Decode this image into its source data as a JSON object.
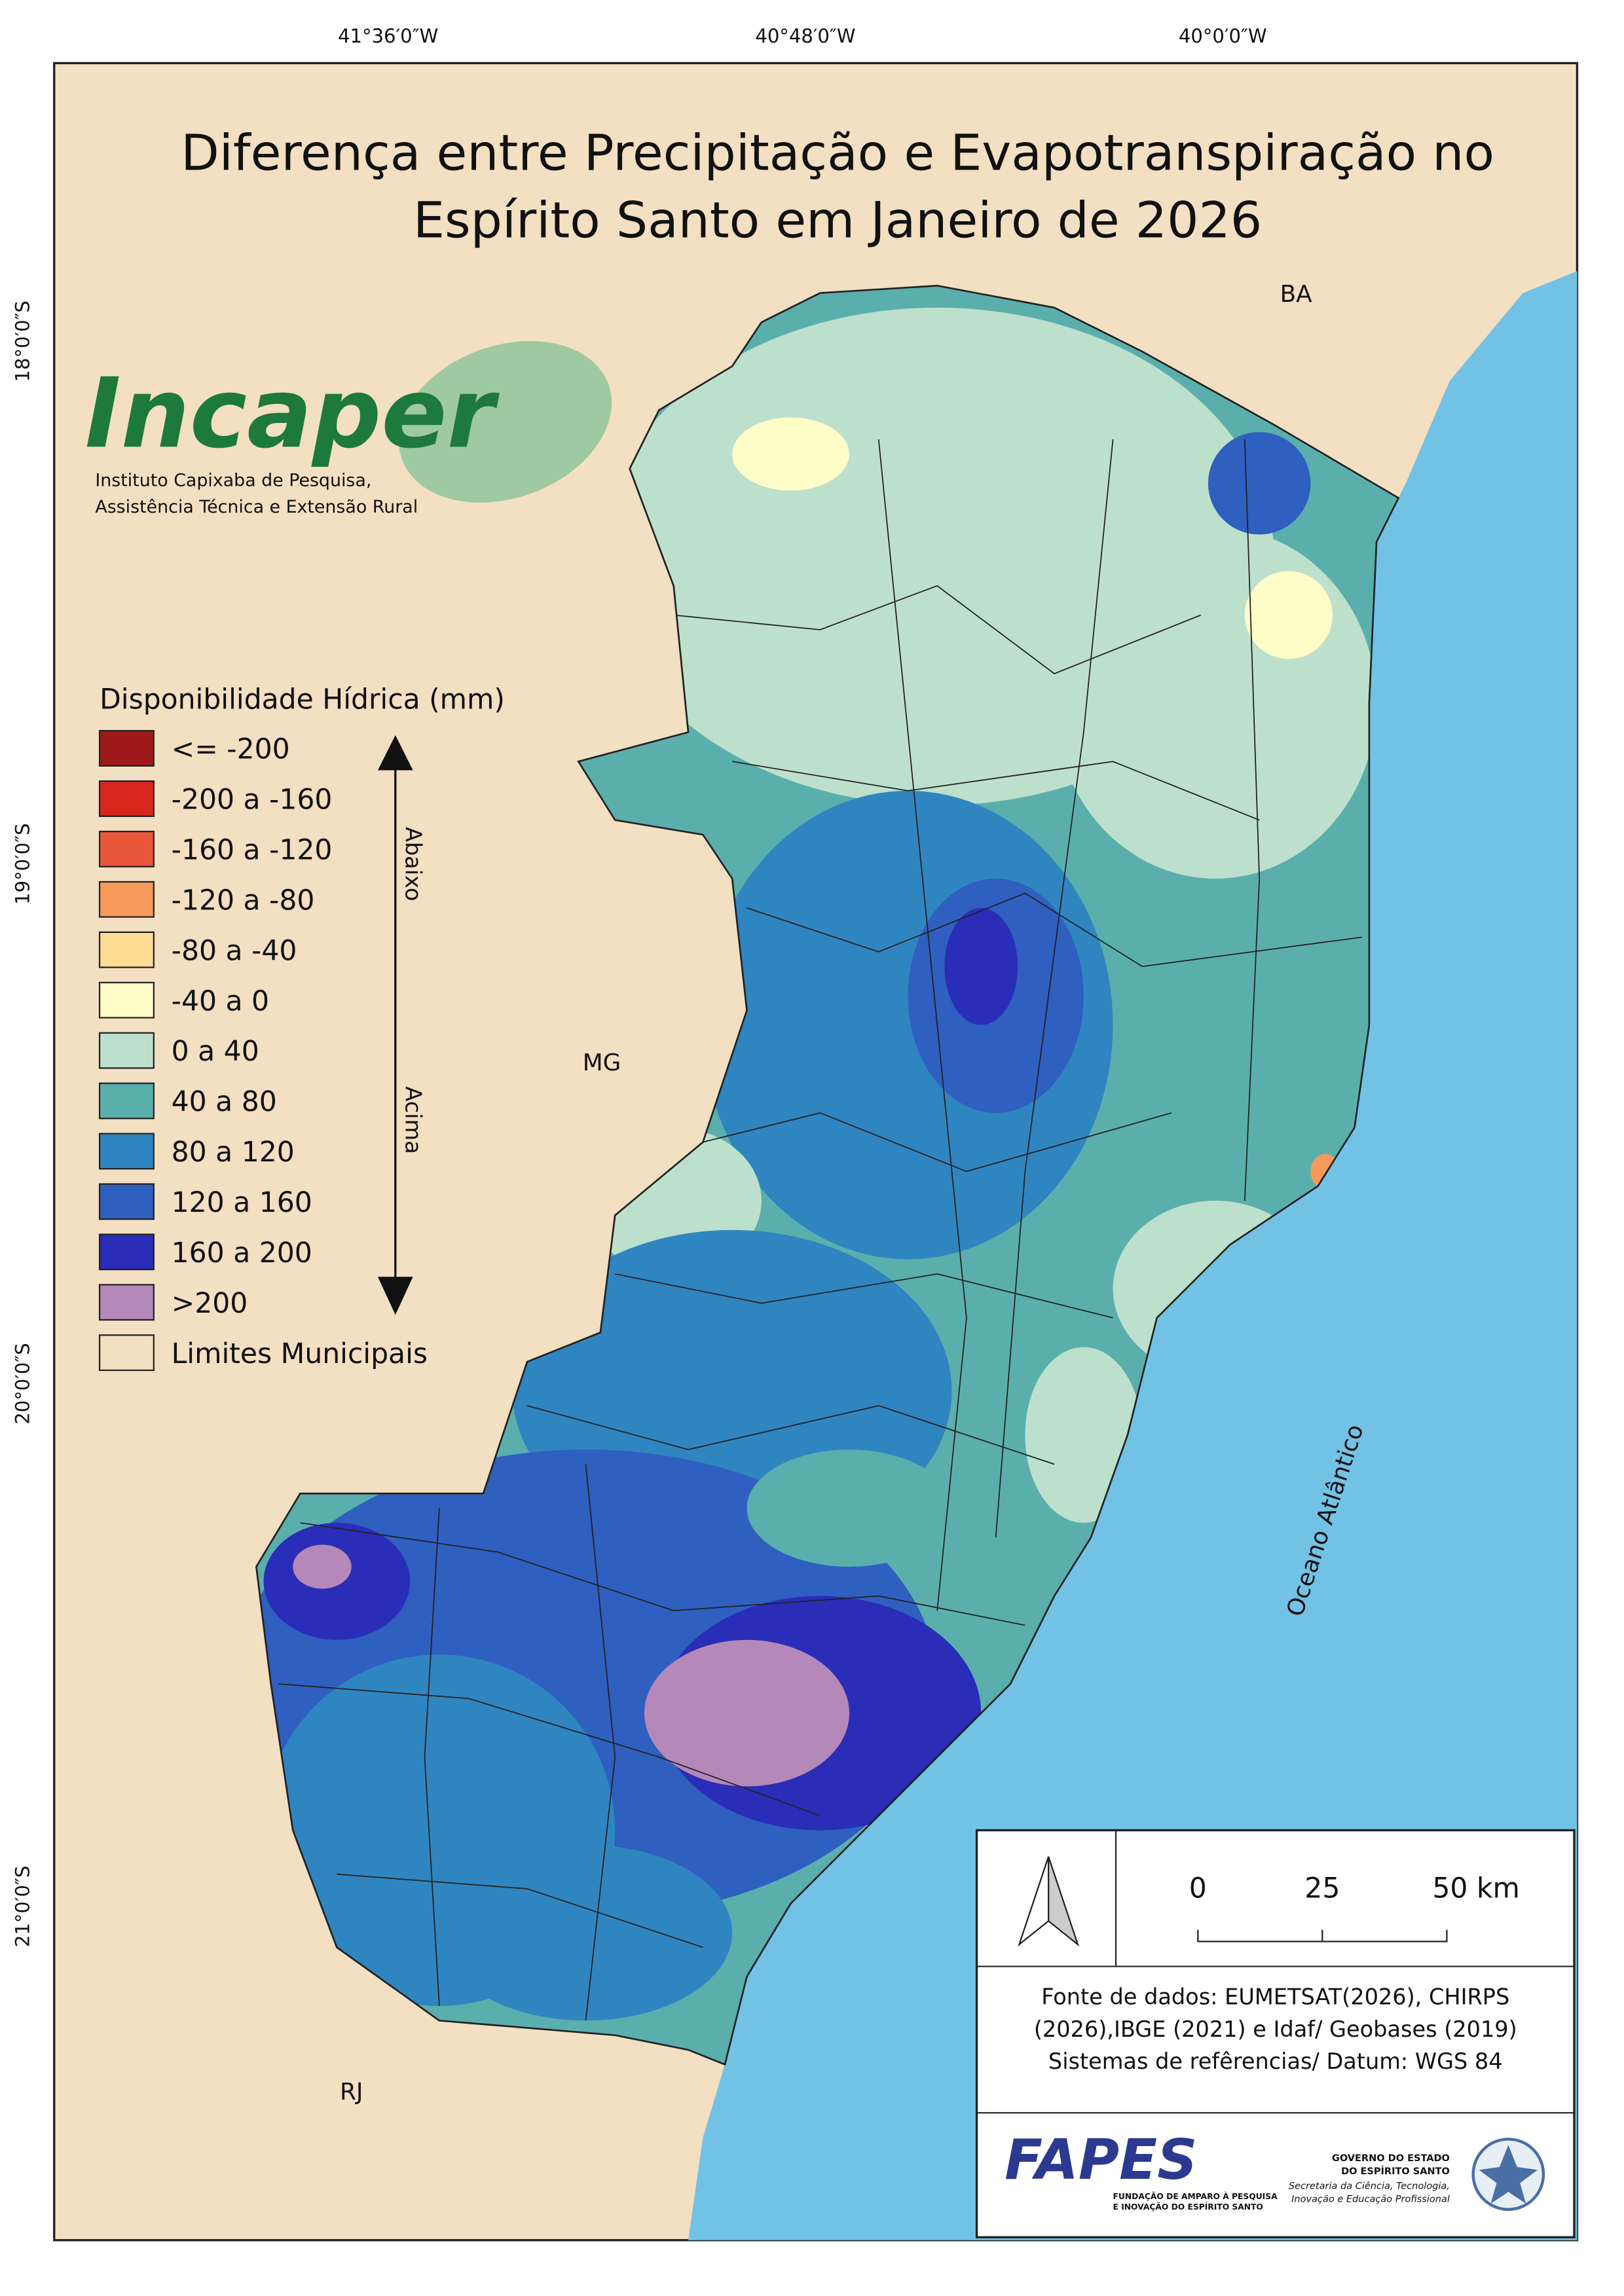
{
  "title": {
    "line1": "Diferença entre Precipitação e Evapotranspiração no",
    "line2": "Espírito Santo em Janeiro de 2026"
  },
  "coordinates": {
    "longitude": [
      "41°36′0″W",
      "40°48′0″W",
      "40°0′0″W"
    ],
    "latitude": [
      "18°0′0″S",
      "19°0′0″S",
      "20°0′0″S",
      "21°0′0″S"
    ]
  },
  "logo": {
    "name": "Incaper",
    "line1": "Instituto Capixaba de Pesquisa,",
    "line2": "Assistência Técnica e Extensão Rural"
  },
  "legend": {
    "title": "Disponibilidade Hídrica (mm)",
    "items": [
      {
        "label": "<= -200",
        "color": "#9e1a1a"
      },
      {
        "label": "-200 a -160",
        "color": "#d7261e"
      },
      {
        "label": "-160 a -120",
        "color": "#e8573a"
      },
      {
        "label": "-120 a -80",
        "color": "#f59a5a"
      },
      {
        "label": "-80 a -40",
        "color": "#fddc94"
      },
      {
        "label": "-40 a 0",
        "color": "#fefdc8"
      },
      {
        "label": "0 a 40",
        "color": "#bde0cc"
      },
      {
        "label": "40 a 80",
        "color": "#5aafad"
      },
      {
        "label": "80 a 120",
        "color": "#2f85c0"
      },
      {
        "label": "120 a 160",
        "color": "#2f5fbf"
      },
      {
        "label": "160 a 200",
        "color": "#2a2db8"
      },
      {
        "label": ">200",
        "color": "#b488b8"
      },
      {
        "label": "Limites Municipais",
        "color": "#f3dfc1"
      }
    ],
    "arrow_up": "Abaixo",
    "arrow_down": "Acima"
  },
  "places": {
    "ba": "BA",
    "mg": "MG",
    "rj": "RJ",
    "ocean": "Oceano Atlântico"
  },
  "scale": {
    "labels": [
      "0",
      "25",
      "50 km"
    ]
  },
  "source": {
    "line1": "Fonte de dados: EUMETSAT(2026), CHIRPS",
    "line2": "(2026),IBGE (2021) e Idaf/ Geobases (2019)",
    "line3": "Sistemas de refêrencias/ Datum: WGS 84"
  },
  "footer": {
    "fapes": "FAPES",
    "fapes_line1": "FUNDAÇÃO DE AMPARO À PESQUISA",
    "fapes_line2": "E INOVAÇÃO DO ESPÍRITO SANTO",
    "gov_line1": "GOVERNO DO ESTADO",
    "gov_line2": "DO ESPÍRITO SANTO",
    "sec_line1": "Secretaria da Ciência, Tecnologia,",
    "sec_line2": "Inovação e Educação Profissional"
  }
}
